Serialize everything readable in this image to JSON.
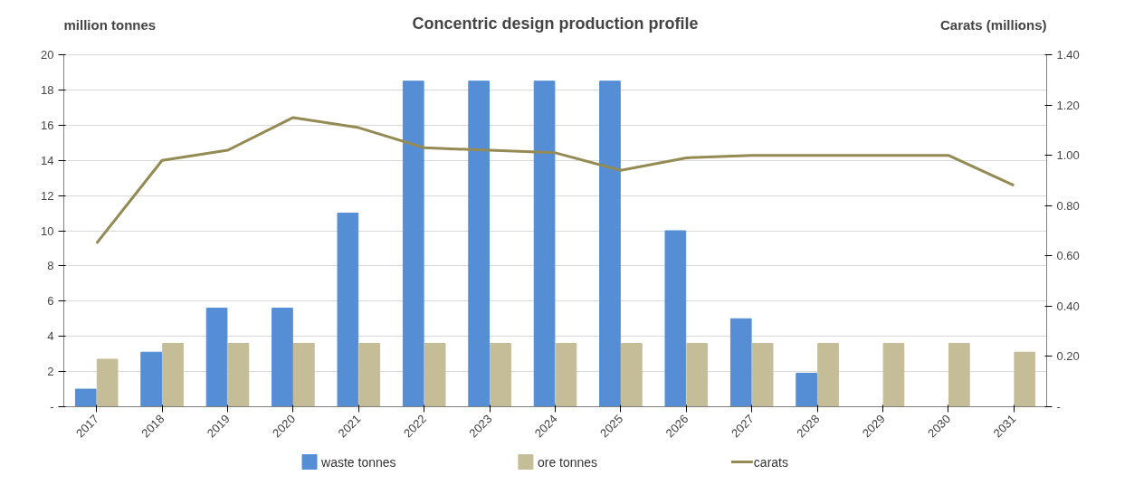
{
  "chart_data": {
    "type": "bar",
    "title": "Concentric design production profile",
    "ylabel": "million tonnes",
    "y2label": "Carats (millions)",
    "categories": [
      "2017",
      "2018",
      "2019",
      "2020",
      "2021",
      "2022",
      "2023",
      "2024",
      "2025",
      "2026",
      "2027",
      "2028",
      "2029",
      "2030",
      "2031"
    ],
    "series": [
      {
        "name": "waste tonnes",
        "color": "#558ed5",
        "values": [
          1.0,
          3.1,
          5.6,
          5.6,
          11.0,
          18.5,
          18.5,
          18.5,
          18.5,
          10.0,
          5.0,
          1.9,
          0,
          0,
          0
        ]
      },
      {
        "name": "ore tonnes",
        "color": "#c4bd97",
        "values": [
          2.7,
          3.6,
          3.6,
          3.6,
          3.6,
          3.6,
          3.6,
          3.6,
          3.6,
          3.6,
          3.6,
          3.6,
          3.6,
          3.6,
          3.1
        ]
      },
      {
        "name": "carats",
        "type": "line",
        "axis": "y2",
        "color": "#948a54",
        "values": [
          0.65,
          0.98,
          1.02,
          1.15,
          1.11,
          1.03,
          1.02,
          1.01,
          0.94,
          0.99,
          1.0,
          1.0,
          1.0,
          1.0,
          0.88
        ]
      }
    ],
    "ylim": [
      0,
      20
    ],
    "yticks": [
      {
        "value": 0,
        "label": "-"
      },
      2,
      4,
      6,
      8,
      10,
      12,
      14,
      16,
      18,
      20
    ],
    "y2lim": [
      0,
      1.4
    ],
    "y2ticks": [
      {
        "value": 0,
        "label": "-"
      },
      {
        "value": 0.2,
        "label": "0.20"
      },
      {
        "value": 0.4,
        "label": "0.40"
      },
      {
        "value": 0.6,
        "label": "0.60"
      },
      {
        "value": 0.8,
        "label": "0.80"
      },
      {
        "value": 1.0,
        "label": "1.00"
      },
      {
        "value": 1.2,
        "label": "1.20"
      },
      {
        "value": 1.4,
        "label": "1.40"
      }
    ],
    "grid": "y",
    "legend": "bottom"
  }
}
